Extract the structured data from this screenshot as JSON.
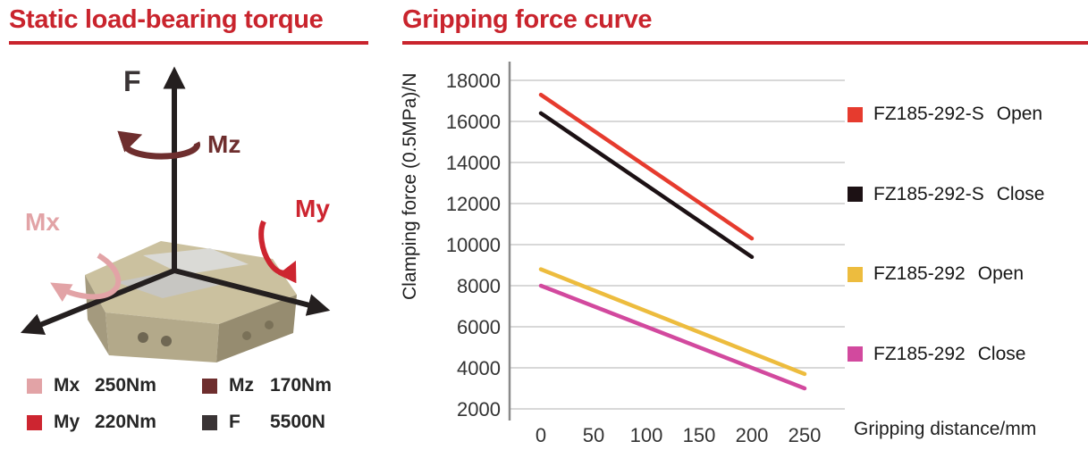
{
  "theme": {
    "accent_red": "#c9242d",
    "grid_color": "#cccccc",
    "axis_color": "#8a8a8a",
    "tick_text_color": "#333333"
  },
  "left_panel": {
    "title": "Static load-bearing torque",
    "axis_labels": {
      "f": "F",
      "mz": "Mz",
      "my": "My",
      "mx": "Mx"
    },
    "legend": [
      {
        "label": "Mx",
        "value": "250Nm",
        "color": "#e2a3a6"
      },
      {
        "label": "Mz",
        "value": "170Nm",
        "color": "#6e2e2e"
      },
      {
        "label": "My",
        "value": "220Nm",
        "color": "#cd2530"
      },
      {
        "label": "F",
        "value": "5500N",
        "color": "#3a3435"
      }
    ]
  },
  "right_panel": {
    "title": "Gripping force curve"
  },
  "chart_data": {
    "type": "line",
    "title": "Gripping force curve",
    "xlabel": "Gripping distance/mm",
    "ylabel": "Clamping force (0.5MPa)/N",
    "xlim": [
      0,
      270
    ],
    "ylim": [
      2000,
      18000
    ],
    "x_ticks": [
      0,
      50,
      100,
      150,
      200,
      250
    ],
    "y_ticks": [
      2000,
      4000,
      6000,
      8000,
      10000,
      12000,
      14000,
      16000,
      18000
    ],
    "grid": "horizontal",
    "legend_position": "right",
    "series": [
      {
        "model": "FZ185-292-S",
        "state": "Open",
        "color": "#e63b2e",
        "points": [
          [
            0,
            17300
          ],
          [
            200,
            10300
          ]
        ]
      },
      {
        "model": "FZ185-292-S",
        "state": "Close",
        "color": "#1c1114",
        "points": [
          [
            0,
            16400
          ],
          [
            200,
            9400
          ]
        ]
      },
      {
        "model": "FZ185-292",
        "state": "Open",
        "color": "#edbc3e",
        "points": [
          [
            0,
            8800
          ],
          [
            250,
            3700
          ]
        ]
      },
      {
        "model": "FZ185-292",
        "state": "Close",
        "color": "#d2499e",
        "points": [
          [
            0,
            8000
          ],
          [
            250,
            3000
          ]
        ]
      }
    ]
  }
}
